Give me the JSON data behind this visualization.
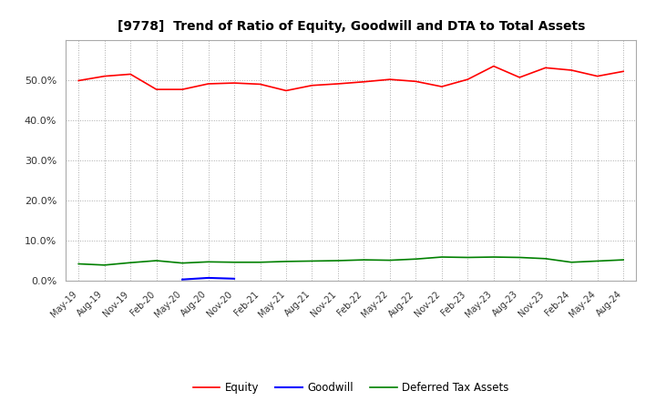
{
  "title": "[9778]  Trend of Ratio of Equity, Goodwill and DTA to Total Assets",
  "x_labels": [
    "May-19",
    "Aug-19",
    "Nov-19",
    "Feb-20",
    "May-20",
    "Aug-20",
    "Nov-20",
    "Feb-21",
    "May-21",
    "Aug-21",
    "Nov-21",
    "Feb-22",
    "May-22",
    "Aug-22",
    "Nov-22",
    "Feb-23",
    "May-23",
    "Aug-23",
    "Nov-23",
    "Feb-24",
    "May-24",
    "Aug-24"
  ],
  "equity": [
    49.9,
    51.0,
    51.5,
    47.7,
    47.7,
    49.1,
    49.3,
    49.0,
    47.4,
    48.7,
    49.1,
    49.6,
    50.2,
    49.7,
    48.4,
    50.2,
    53.5,
    50.7,
    53.1,
    52.5,
    51.0,
    52.2
  ],
  "goodwill": [
    null,
    null,
    null,
    null,
    0.3,
    0.7,
    0.5,
    null,
    null,
    null,
    null,
    null,
    null,
    null,
    null,
    null,
    null,
    null,
    null,
    null,
    null,
    null
  ],
  "dta": [
    4.2,
    3.9,
    4.5,
    5.0,
    4.4,
    4.7,
    4.6,
    4.6,
    4.8,
    4.9,
    5.0,
    5.2,
    5.1,
    5.4,
    5.9,
    5.8,
    5.9,
    5.8,
    5.5,
    4.6,
    4.9,
    5.2
  ],
  "equity_color": "#FF0000",
  "goodwill_color": "#0000FF",
  "dta_color": "#008000",
  "ylim": [
    0,
    60
  ],
  "yticks": [
    0,
    10,
    20,
    30,
    40,
    50
  ],
  "background_color": "#FFFFFF",
  "grid_color": "#AAAAAA",
  "legend_labels": [
    "Equity",
    "Goodwill",
    "Deferred Tax Assets"
  ]
}
